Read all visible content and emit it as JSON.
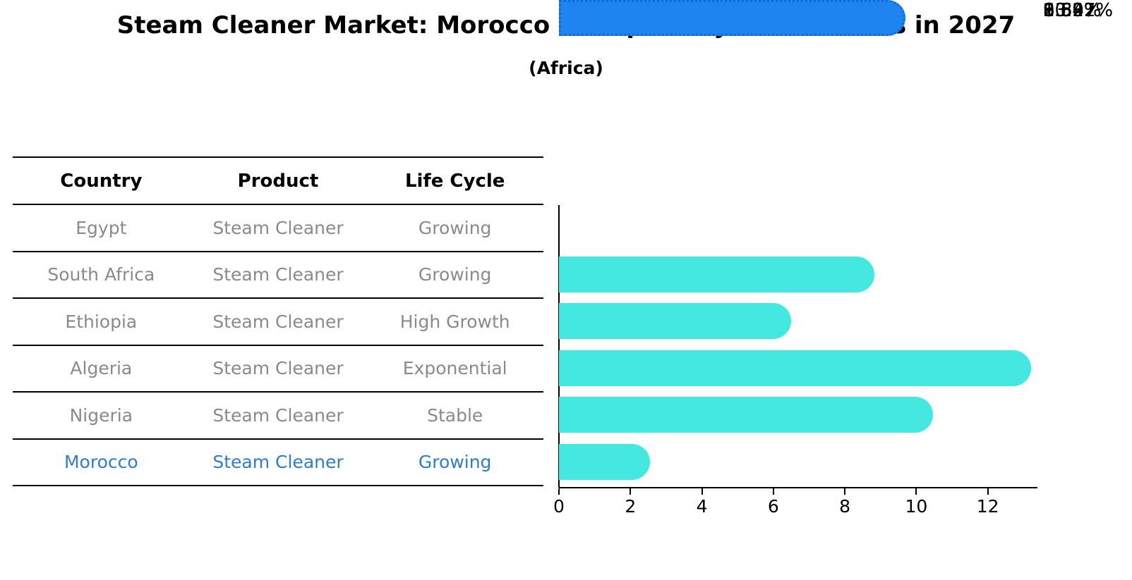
{
  "title": "Steam Cleaner Market: Morocco vs Top 5 Major Economies in 2027",
  "subtitle": "(Africa)",
  "table": {
    "headers": [
      "Country",
      "Product",
      "Life Cycle"
    ],
    "rows": [
      {
        "country": "Egypt",
        "product": "Steam Cleaner",
        "life_cycle": "Growing",
        "highlight": false
      },
      {
        "country": "South Africa",
        "product": "Steam Cleaner",
        "life_cycle": "Growing",
        "highlight": false
      },
      {
        "country": "Ethiopia",
        "product": "Steam Cleaner",
        "life_cycle": "High Growth",
        "highlight": false
      },
      {
        "country": "Algeria",
        "product": "Steam Cleaner",
        "life_cycle": "Exponential",
        "highlight": false
      },
      {
        "country": "Nigeria",
        "product": "Steam Cleaner",
        "life_cycle": "Stable",
        "highlight": false
      },
      {
        "country": "Morocco",
        "product": "Steam Cleaner",
        "life_cycle": "Growing",
        "highlight": true
      }
    ]
  },
  "chart_data": {
    "type": "bar",
    "orientation": "horizontal",
    "title": "Steam Cleaner Market: Morocco vs Top 5 Major Economies in 2027 (Africa)",
    "xlabel": "",
    "ylabel": "",
    "categories": [
      "Egypt",
      "South Africa",
      "Ethiopia",
      "Algeria",
      "Nigeria",
      "Morocco"
    ],
    "values": [
      8.83,
      6.5,
      13.22,
      10.47,
      2.54,
      9.69
    ],
    "value_labels": [
      "8.83%",
      "6.50%",
      "13.22%",
      "10.47%",
      "2.54%",
      "9.69%"
    ],
    "x_ticks": [
      0,
      2,
      4,
      6,
      8,
      10,
      12
    ],
    "xlim": [
      0,
      13.35
    ],
    "grid": false,
    "legend": "none",
    "highlight_index": 5,
    "bar_color": "#45e7e1",
    "highlight_color": "#1e85f0",
    "highlight_border_color": "#1567d2"
  },
  "colors": {
    "row_text": "#8a8a8a",
    "highlight_text": "#2f7cd3",
    "line": "#000000"
  }
}
